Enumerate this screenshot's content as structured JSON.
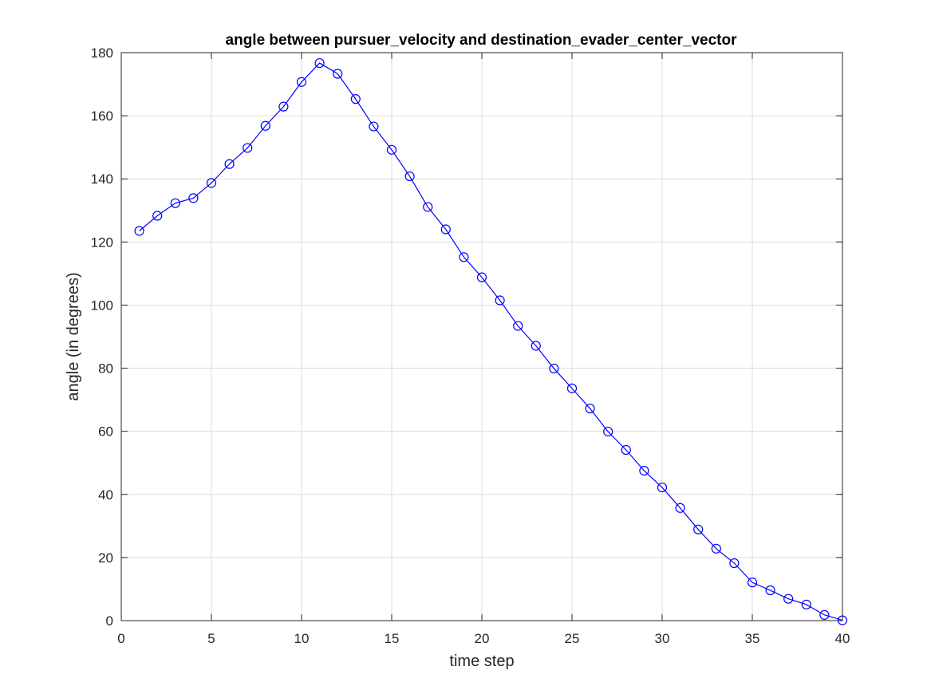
{
  "chart_data": {
    "type": "line",
    "title": "angle between pursuer_velocity and destination_evader_center_vector",
    "xlabel": "time step",
    "ylabel": "angle (in degrees)",
    "xlim": [
      0,
      40
    ],
    "ylim": [
      0,
      180
    ],
    "xticks": [
      0,
      5,
      10,
      15,
      20,
      25,
      30,
      35,
      40
    ],
    "yticks": [
      0,
      20,
      40,
      60,
      80,
      100,
      120,
      140,
      160,
      180
    ],
    "grid": true,
    "marker": "circle",
    "series": [
      {
        "color": "#0000ff",
        "x": [
          1,
          2,
          3,
          4,
          5,
          6,
          7,
          8,
          9,
          10,
          11,
          12,
          13,
          14,
          15,
          16,
          17,
          18,
          19,
          20,
          21,
          22,
          23,
          24,
          25,
          26,
          27,
          28,
          29,
          30,
          31,
          32,
          33,
          34,
          35,
          36,
          37,
          38,
          39,
          40
        ],
        "y": [
          123.5,
          128.3,
          132.3,
          133.9,
          138.7,
          144.7,
          149.8,
          156.8,
          162.9,
          170.7,
          176.7,
          173.3,
          165.3,
          156.6,
          149.2,
          140.8,
          131.1,
          124.0,
          115.2,
          108.8,
          101.5,
          93.4,
          87.1,
          79.9,
          73.6,
          67.2,
          59.9,
          54.1,
          47.5,
          42.2,
          35.7,
          28.9,
          22.8,
          18.2,
          12.1,
          9.6,
          6.9,
          5.1,
          1.8,
          0.1
        ]
      }
    ]
  }
}
